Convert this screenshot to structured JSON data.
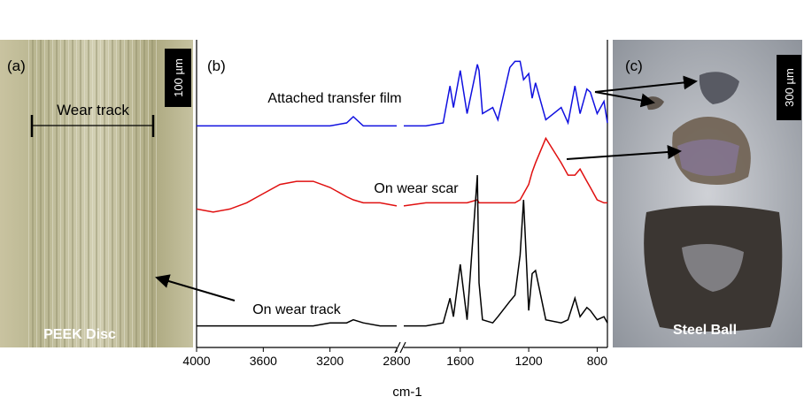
{
  "chart_data": {
    "type": "line",
    "panel_label": "(b)",
    "x_label": "cm-1",
    "x": [
      4000,
      3900,
      3800,
      3700,
      3600,
      3500,
      3400,
      3300,
      3200,
      3100,
      3060,
      3000,
      2900,
      2800,
      1930,
      1800,
      1700,
      1660,
      1640,
      1600,
      1560,
      1500,
      1490,
      1470,
      1410,
      1380,
      1310,
      1280,
      1250,
      1230,
      1200,
      1180,
      1160,
      1100,
      1010,
      970,
      930,
      900,
      860,
      840,
      800,
      760,
      740
    ],
    "series": [
      {
        "name": "Attached transfer film",
        "color": "#1010e0",
        "values": [
          72,
          72,
          72,
          72,
          72,
          72,
          72,
          72,
          72,
          73,
          75,
          72,
          72,
          72,
          72,
          72,
          73,
          85,
          78,
          90,
          76,
          92,
          90,
          76,
          78,
          74,
          91,
          93,
          93,
          87,
          89,
          81,
          86,
          74,
          78,
          73,
          85,
          76,
          84,
          83,
          76,
          80,
          73
        ]
      },
      {
        "name": "On wear scar",
        "color": "#e01010",
        "values": [
          45,
          44,
          45,
          47,
          50,
          53,
          54,
          54,
          52,
          49,
          48,
          47,
          47,
          46,
          46,
          47,
          47,
          47,
          47,
          47,
          47,
          48,
          47,
          47,
          47,
          47,
          47,
          47,
          48,
          50,
          53,
          57,
          60,
          68,
          60,
          56,
          56,
          58,
          54,
          52,
          48,
          47,
          47
        ]
      },
      {
        "name": "On wear track",
        "color": "#000000",
        "values": [
          7,
          7,
          7,
          7,
          7,
          7,
          7,
          7,
          8,
          8,
          9,
          8,
          7,
          7,
          7,
          7,
          8,
          16,
          10,
          27,
          9,
          56,
          21,
          9,
          8,
          10,
          15,
          17,
          30,
          48,
          12,
          24,
          25,
          9,
          8,
          9,
          16,
          10,
          13,
          12,
          9,
          10,
          8
        ]
      }
    ],
    "xlim": [
      4000,
      740
    ],
    "xbreak": [
      2800,
      1930
    ],
    "xticks": [
      4000,
      3600,
      3200,
      2800,
      1600,
      1200,
      800
    ],
    "ylim": [
      0,
      100
    ]
  },
  "panel_a": {
    "label": "(a)",
    "scale_bar": "100 µm",
    "annotation": "Wear track",
    "caption": "PEEK Disc"
  },
  "panel_c": {
    "label": "(c)",
    "scale_bar": "300 µm",
    "caption": "Steel Ball"
  }
}
